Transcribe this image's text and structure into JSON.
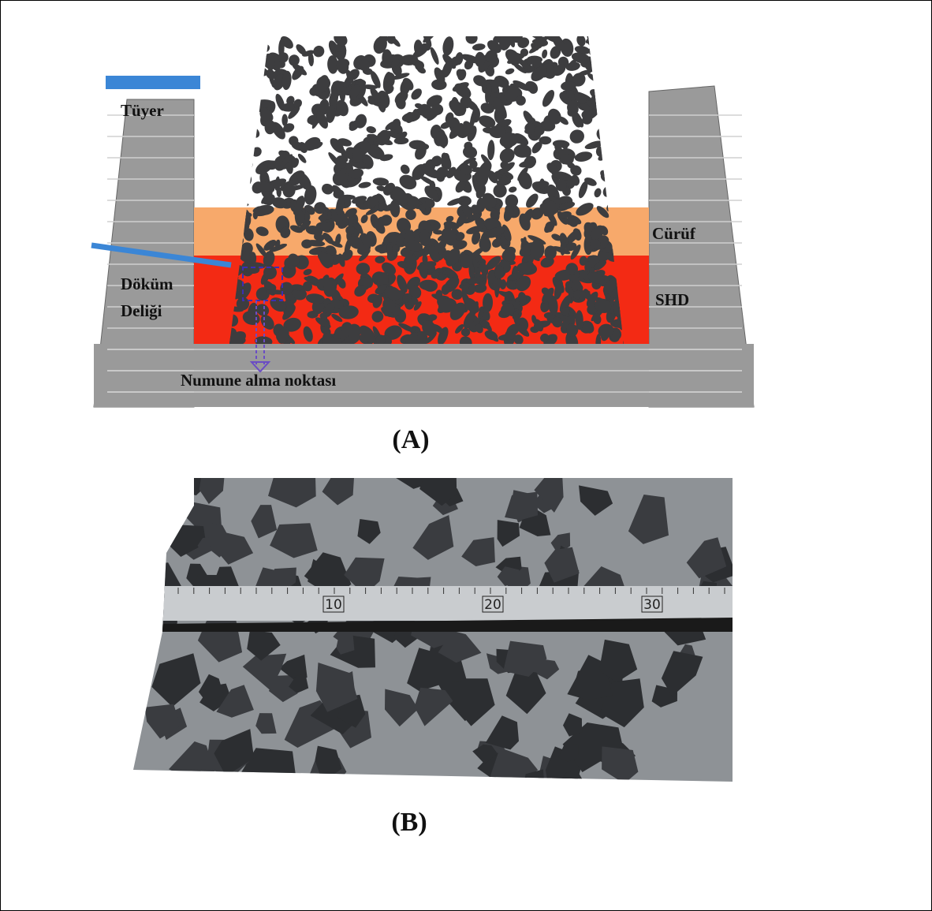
{
  "figure_a": {
    "labels": {
      "tuyere": "Tüyer",
      "slag": "Cürüf",
      "metal": "SHD",
      "taphole_line1": "Döküm",
      "taphole_line2": "Deliği",
      "sampling": "Numune alma noktası"
    },
    "caption": "(A)"
  },
  "figure_b": {
    "ruler_labels": [
      "10",
      "20",
      "30"
    ],
    "caption": "(B)"
  }
}
